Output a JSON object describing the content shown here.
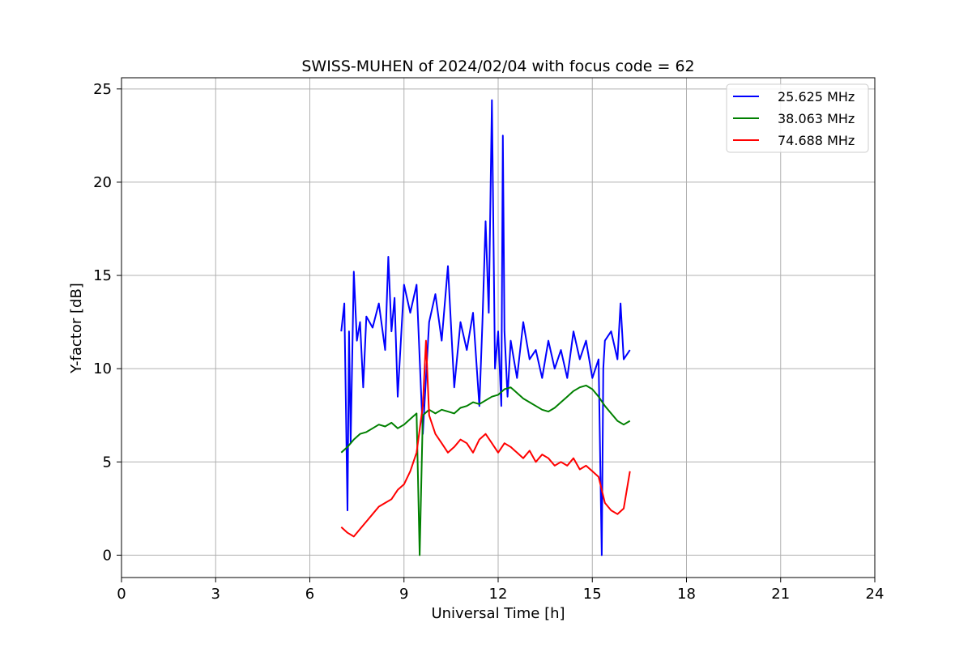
{
  "chart_data": {
    "type": "line",
    "title": "SWISS-MUHEN of 2024/02/04 with focus code = 62",
    "xlabel": "Universal Time [h]",
    "ylabel": "Y-factor [dB]",
    "xlim": [
      0,
      24
    ],
    "ylim": [
      -1.2,
      25.6
    ],
    "xticks": [
      0,
      3,
      6,
      9,
      12,
      15,
      18,
      21,
      24
    ],
    "yticks": [
      0,
      5,
      10,
      15,
      20,
      25
    ],
    "grid": true,
    "legend_position": "top-right",
    "series": [
      {
        "name": "25.625 MHz",
        "color": "#0000ff",
        "x": [
          7.0,
          7.1,
          7.2,
          7.25,
          7.3,
          7.4,
          7.5,
          7.6,
          7.7,
          7.8,
          8.0,
          8.2,
          8.4,
          8.5,
          8.6,
          8.7,
          8.8,
          9.0,
          9.2,
          9.4,
          9.6,
          9.8,
          10.0,
          10.2,
          10.4,
          10.6,
          10.8,
          11.0,
          11.2,
          11.4,
          11.5,
          11.6,
          11.7,
          11.8,
          11.9,
          12.0,
          12.1,
          12.15,
          12.2,
          12.3,
          12.4,
          12.6,
          12.8,
          13.0,
          13.2,
          13.4,
          13.6,
          13.8,
          14.0,
          14.2,
          14.4,
          14.6,
          14.8,
          15.0,
          15.2,
          15.3,
          15.35,
          15.4,
          15.6,
          15.8,
          15.9,
          16.0,
          16.2
        ],
        "y": [
          12.0,
          13.5,
          2.4,
          12.0,
          6.0,
          15.2,
          11.5,
          12.5,
          9.0,
          12.8,
          12.2,
          13.5,
          11.0,
          16.0,
          12.0,
          13.8,
          8.5,
          14.5,
          13.0,
          14.5,
          6.5,
          12.5,
          14.0,
          11.5,
          15.5,
          9.0,
          12.5,
          11.0,
          13.0,
          8.0,
          12.5,
          17.9,
          13.0,
          24.4,
          10.0,
          12.0,
          8.0,
          22.5,
          12.0,
          8.5,
          11.5,
          9.5,
          12.5,
          10.5,
          11.0,
          9.5,
          11.5,
          10.0,
          11.0,
          9.5,
          12.0,
          10.5,
          11.5,
          9.5,
          10.5,
          0.0,
          10.0,
          11.5,
          12.0,
          10.5,
          13.5,
          10.5,
          11.0
        ]
      },
      {
        "name": "38.063 MHz",
        "color": "#008000",
        "x": [
          7.0,
          7.2,
          7.4,
          7.6,
          7.8,
          8.0,
          8.2,
          8.4,
          8.6,
          8.8,
          9.0,
          9.2,
          9.4,
          9.5,
          9.6,
          9.8,
          10.0,
          10.2,
          10.4,
          10.6,
          10.8,
          11.0,
          11.2,
          11.4,
          11.6,
          11.8,
          12.0,
          12.2,
          12.4,
          12.6,
          12.8,
          13.0,
          13.2,
          13.4,
          13.6,
          13.8,
          14.0,
          14.2,
          14.4,
          14.6,
          14.8,
          15.0,
          15.2,
          15.4,
          15.6,
          15.8,
          16.0,
          16.2
        ],
        "y": [
          5.5,
          5.8,
          6.2,
          6.5,
          6.6,
          6.8,
          7.0,
          6.9,
          7.1,
          6.8,
          7.0,
          7.3,
          7.6,
          0.0,
          7.5,
          7.8,
          7.6,
          7.8,
          7.7,
          7.6,
          7.9,
          8.0,
          8.2,
          8.1,
          8.3,
          8.5,
          8.6,
          8.9,
          9.0,
          8.7,
          8.4,
          8.2,
          8.0,
          7.8,
          7.7,
          7.9,
          8.2,
          8.5,
          8.8,
          9.0,
          9.1,
          8.9,
          8.5,
          8.0,
          7.6,
          7.2,
          7.0,
          7.2
        ]
      },
      {
        "name": "74.688 MHz",
        "color": "#ff0000",
        "x": [
          7.0,
          7.2,
          7.4,
          7.6,
          7.8,
          8.0,
          8.2,
          8.4,
          8.6,
          8.8,
          9.0,
          9.2,
          9.4,
          9.6,
          9.7,
          9.8,
          10.0,
          10.2,
          10.4,
          10.6,
          10.8,
          11.0,
          11.2,
          11.4,
          11.6,
          11.8,
          12.0,
          12.2,
          12.4,
          12.6,
          12.8,
          13.0,
          13.2,
          13.4,
          13.6,
          13.8,
          14.0,
          14.2,
          14.4,
          14.6,
          14.8,
          15.0,
          15.2,
          15.4,
          15.6,
          15.8,
          16.0,
          16.2
        ],
        "y": [
          1.5,
          1.2,
          1.0,
          1.4,
          1.8,
          2.2,
          2.6,
          2.8,
          3.0,
          3.5,
          3.8,
          4.5,
          5.5,
          8.0,
          11.5,
          7.5,
          6.5,
          6.0,
          5.5,
          5.8,
          6.2,
          6.0,
          5.5,
          6.2,
          6.5,
          6.0,
          5.5,
          6.0,
          5.8,
          5.5,
          5.2,
          5.6,
          5.0,
          5.4,
          5.2,
          4.8,
          5.0,
          4.8,
          5.2,
          4.6,
          4.8,
          4.5,
          4.2,
          2.8,
          2.4,
          2.2,
          2.5,
          4.5
        ]
      }
    ]
  }
}
